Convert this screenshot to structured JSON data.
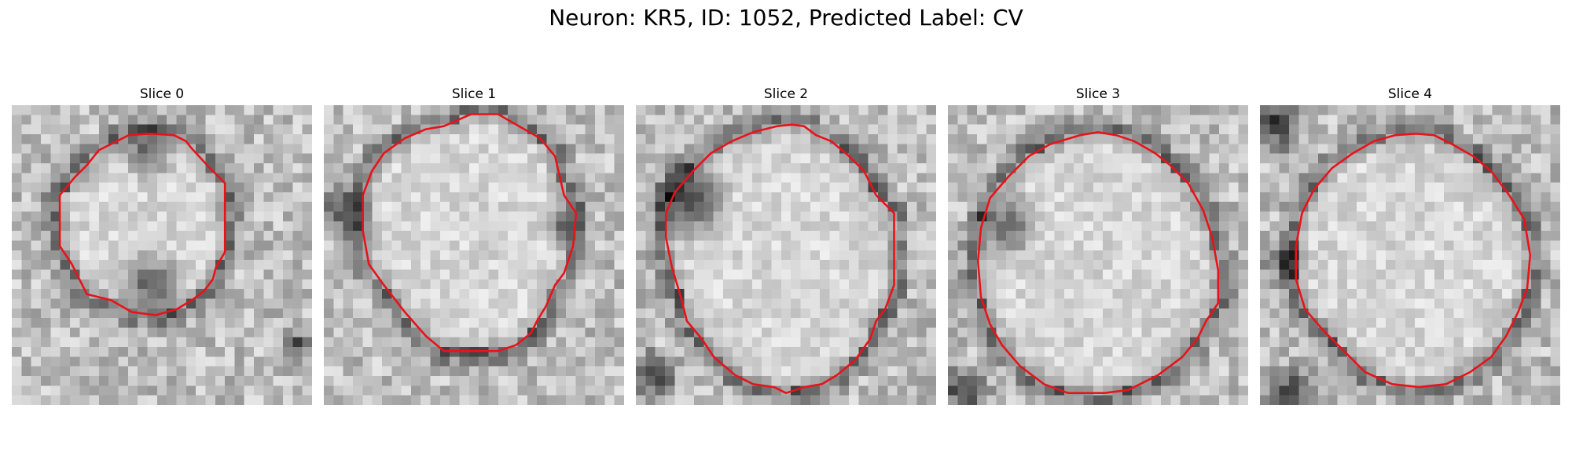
{
  "figure": {
    "title": "Neuron: KR5, ID: 1052, Predicted Label: CV"
  },
  "panels": [
    {
      "title": "Slice 0"
    },
    {
      "title": "Slice 1"
    },
    {
      "title": "Slice 2"
    },
    {
      "title": "Slice 3"
    },
    {
      "title": "Slice 4"
    }
  ],
  "colors": {
    "contour": "#e8131a",
    "background": "#ffffff"
  }
}
